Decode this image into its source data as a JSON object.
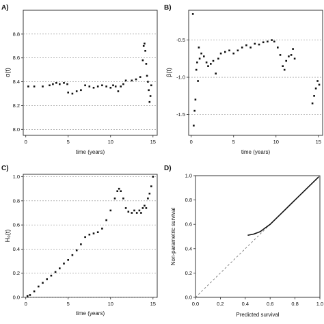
{
  "chart_data": [
    {
      "panel_label": "A)",
      "type": "scatter",
      "xlabel": "time (years)",
      "ylabel": "α(t)",
      "xlim": [
        -0.3,
        15.5
      ],
      "ylim": [
        7.95,
        9.0
      ],
      "xticks": [
        "0",
        "5",
        "10",
        "15"
      ],
      "yticks": [
        "8.0",
        "8.2",
        "8.4",
        "8.6",
        "8.8"
      ],
      "grid": "horizontal dashed",
      "series": [
        {
          "points": [
            [
              0.3,
              8.36
            ],
            [
              1.0,
              8.36
            ],
            [
              2.0,
              8.36
            ],
            [
              2.8,
              8.37
            ],
            [
              3.2,
              8.38
            ],
            [
              3.6,
              8.39
            ],
            [
              4.0,
              8.38
            ],
            [
              4.5,
              8.39
            ],
            [
              4.9,
              8.38
            ],
            [
              5.0,
              8.31
            ],
            [
              5.5,
              8.3
            ],
            [
              6.0,
              8.32
            ],
            [
              6.5,
              8.33
            ],
            [
              7.0,
              8.37
            ],
            [
              7.5,
              8.36
            ],
            [
              8.0,
              8.35
            ],
            [
              8.5,
              8.36
            ],
            [
              9.0,
              8.37
            ],
            [
              9.5,
              8.36
            ],
            [
              10.0,
              8.35
            ],
            [
              10.3,
              8.37
            ],
            [
              10.6,
              8.36
            ],
            [
              10.9,
              8.32
            ],
            [
              11.2,
              8.36
            ],
            [
              11.5,
              8.38
            ],
            [
              11.8,
              8.41
            ],
            [
              12.5,
              8.41
            ],
            [
              13.0,
              8.42
            ],
            [
              13.5,
              8.44
            ],
            [
              13.8,
              8.58
            ],
            [
              13.9,
              8.7
            ],
            [
              14.0,
              8.72
            ],
            [
              14.1,
              8.66
            ],
            [
              14.2,
              8.55
            ],
            [
              14.3,
              8.45
            ],
            [
              14.4,
              8.4
            ],
            [
              14.5,
              8.33
            ],
            [
              14.6,
              8.23
            ],
            [
              14.7,
              8.28
            ],
            [
              14.8,
              8.37
            ]
          ]
        }
      ]
    },
    {
      "panel_label": "B)",
      "type": "scatter",
      "xlabel": "time (years)",
      "ylabel": "β(t)",
      "xlim": [
        -0.3,
        15.5
      ],
      "ylim": [
        -1.78,
        -0.1
      ],
      "xticks": [
        "0",
        "5",
        "10",
        "15"
      ],
      "yticks": [
        "-0.5",
        "-1.0",
        "-1.5"
      ],
      "grid": "horizontal dashed",
      "series": [
        {
          "points": [
            [
              0.2,
              -0.15
            ],
            [
              0.3,
              -1.65
            ],
            [
              0.4,
              -1.45
            ],
            [
              0.5,
              -1.3
            ],
            [
              0.6,
              -0.9
            ],
            [
              0.7,
              -0.8
            ],
            [
              0.8,
              -1.05
            ],
            [
              0.9,
              -0.6
            ],
            [
              1.0,
              -0.75
            ],
            [
              1.2,
              -0.68
            ],
            [
              1.5,
              -0.72
            ],
            [
              1.8,
              -0.8
            ],
            [
              2.0,
              -0.85
            ],
            [
              2.3,
              -0.82
            ],
            [
              2.6,
              -0.78
            ],
            [
              2.9,
              -0.95
            ],
            [
              3.2,
              -0.75
            ],
            [
              3.5,
              -0.68
            ],
            [
              4.0,
              -0.66
            ],
            [
              4.5,
              -0.64
            ],
            [
              5.0,
              -0.68
            ],
            [
              5.5,
              -0.64
            ],
            [
              6.0,
              -0.6
            ],
            [
              6.5,
              -0.57
            ],
            [
              7.0,
              -0.6
            ],
            [
              7.5,
              -0.55
            ],
            [
              8.0,
              -0.56
            ],
            [
              8.5,
              -0.53
            ],
            [
              9.0,
              -0.52
            ],
            [
              9.5,
              -0.5
            ],
            [
              9.8,
              -0.52
            ],
            [
              10.2,
              -0.6
            ],
            [
              10.5,
              -0.7
            ],
            [
              10.8,
              -0.85
            ],
            [
              11.0,
              -0.9
            ],
            [
              11.2,
              -0.78
            ],
            [
              11.5,
              -0.72
            ],
            [
              11.8,
              -0.7
            ],
            [
              12.0,
              -0.62
            ],
            [
              12.2,
              -0.75
            ],
            [
              14.3,
              -1.35
            ],
            [
              14.5,
              -1.25
            ],
            [
              14.7,
              -1.15
            ],
            [
              14.9,
              -1.05
            ],
            [
              15.1,
              -1.1
            ]
          ]
        }
      ]
    },
    {
      "panel_label": "C)",
      "type": "scatter",
      "xlabel": "time (years)",
      "ylabel": "H₀(t)",
      "xlim": [
        -0.3,
        15.5
      ],
      "ylim": [
        0.0,
        1.02
      ],
      "xticks": [
        "0",
        "5",
        "10",
        "15"
      ],
      "yticks": [
        "0.0",
        "0.2",
        "0.4",
        "0.6",
        "0.8",
        "1.0"
      ],
      "grid": "horizontal dashed",
      "series": [
        {
          "points": [
            [
              0.2,
              0.01
            ],
            [
              0.5,
              0.02
            ],
            [
              1.0,
              0.05
            ],
            [
              1.5,
              0.09
            ],
            [
              2.0,
              0.12
            ],
            [
              2.5,
              0.15
            ],
            [
              3.0,
              0.18
            ],
            [
              3.5,
              0.21
            ],
            [
              4.0,
              0.24
            ],
            [
              4.5,
              0.28
            ],
            [
              5.0,
              0.31
            ],
            [
              5.5,
              0.35
            ],
            [
              6.0,
              0.39
            ],
            [
              6.5,
              0.44
            ],
            [
              7.0,
              0.5
            ],
            [
              7.5,
              0.52
            ],
            [
              8.0,
              0.53
            ],
            [
              8.5,
              0.54
            ],
            [
              9.0,
              0.57
            ],
            [
              9.5,
              0.64
            ],
            [
              10.0,
              0.72
            ],
            [
              10.5,
              0.82
            ],
            [
              10.8,
              0.88
            ],
            [
              11.0,
              0.9
            ],
            [
              11.2,
              0.88
            ],
            [
              11.5,
              0.82
            ],
            [
              11.8,
              0.74
            ],
            [
              12.1,
              0.71
            ],
            [
              12.5,
              0.7
            ],
            [
              12.8,
              0.72
            ],
            [
              13.1,
              0.7
            ],
            [
              13.4,
              0.72
            ],
            [
              13.6,
              0.7
            ],
            [
              13.8,
              0.74
            ],
            [
              14.0,
              0.76
            ],
            [
              14.2,
              0.74
            ],
            [
              14.4,
              0.82
            ],
            [
              14.6,
              0.86
            ],
            [
              14.8,
              0.92
            ],
            [
              15.0,
              1.0
            ]
          ]
        }
      ]
    },
    {
      "panel_label": "D)",
      "type": "line",
      "xlabel": "Predicted survival",
      "ylabel": "Non-parametric survival",
      "xlim": [
        0.0,
        1.0
      ],
      "ylim": [
        0.0,
        1.0
      ],
      "xticks": [
        "0.0",
        "0.2",
        "0.4",
        "0.6",
        "0.8",
        "1.0"
      ],
      "yticks": [
        "0.0",
        "0.2",
        "0.4",
        "0.6",
        "0.8",
        "1.0"
      ],
      "grid": "none",
      "reference_line": [
        [
          0.0,
          0.0
        ],
        [
          1.0,
          1.0
        ]
      ],
      "series": [
        {
          "points": [
            [
              0.42,
              0.51
            ],
            [
              0.47,
              0.52
            ],
            [
              0.52,
              0.54
            ],
            [
              0.56,
              0.57
            ],
            [
              0.6,
              0.6
            ],
            [
              0.65,
              0.65
            ],
            [
              0.7,
              0.7
            ],
            [
              0.75,
              0.75
            ],
            [
              0.8,
              0.8
            ],
            [
              0.85,
              0.85
            ],
            [
              0.9,
              0.9
            ],
            [
              0.95,
              0.95
            ],
            [
              0.99,
              0.99
            ]
          ]
        }
      ]
    }
  ]
}
